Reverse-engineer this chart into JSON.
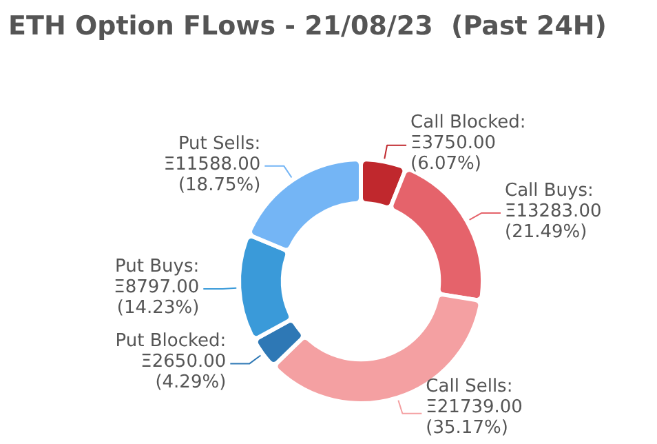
{
  "chart_data": {
    "type": "donut",
    "title": "ETH Option FLows - 21/08/23  (Past 24H)",
    "categories": [
      "Call Blocked",
      "Call Buys",
      "Call Sells",
      "Put Blocked",
      "Put Buys",
      "Put Sells"
    ],
    "values": [
      3750,
      13283,
      21739,
      2650,
      8797,
      11588
    ],
    "colors": [
      "#c0282d",
      "#e5636b",
      "#f4a0a2",
      "#2e78b5",
      "#3a9ad9",
      "#74b5f5"
    ],
    "value_labels": [
      ":\nΞ3750.00\n(6.07%)",
      ":\nΞ13283.00\n(21.49%)",
      ":\nΞ21739.00\n(35.17%)",
      ":\nΞ2650.00\n(4.29%)",
      ":\nΞ8797.00\n(14.23%)",
      ":\nΞ11588.00\n(18.75%)"
    ]
  }
}
